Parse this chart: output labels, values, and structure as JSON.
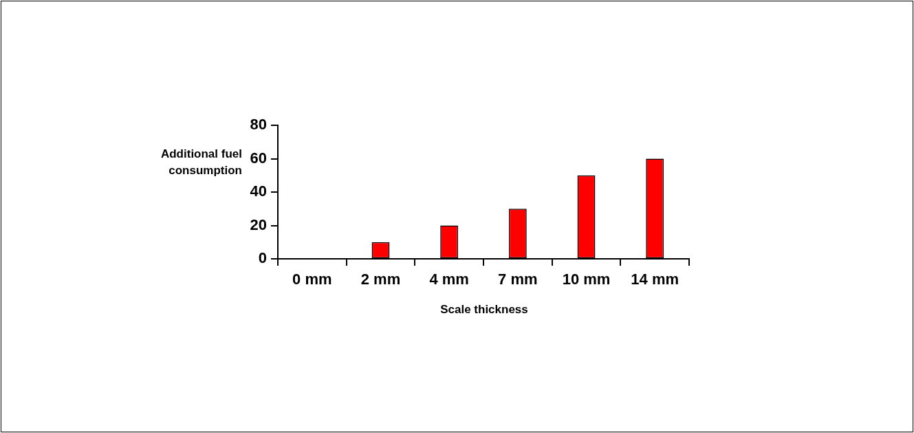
{
  "chart_data": {
    "type": "bar",
    "xlabel": "Scale thickness",
    "ylabel": "Additional fuel consumption",
    "categories": [
      "0 mm",
      "2 mm",
      "4 mm",
      "7 mm",
      "10 mm",
      "14 mm"
    ],
    "values": [
      0,
      10,
      20,
      30,
      50,
      60
    ],
    "color": "#ff0000",
    "ylim": [
      0,
      80
    ],
    "yticks": [
      0,
      20,
      40,
      60,
      80
    ],
    "grid": false,
    "legend": false
  }
}
